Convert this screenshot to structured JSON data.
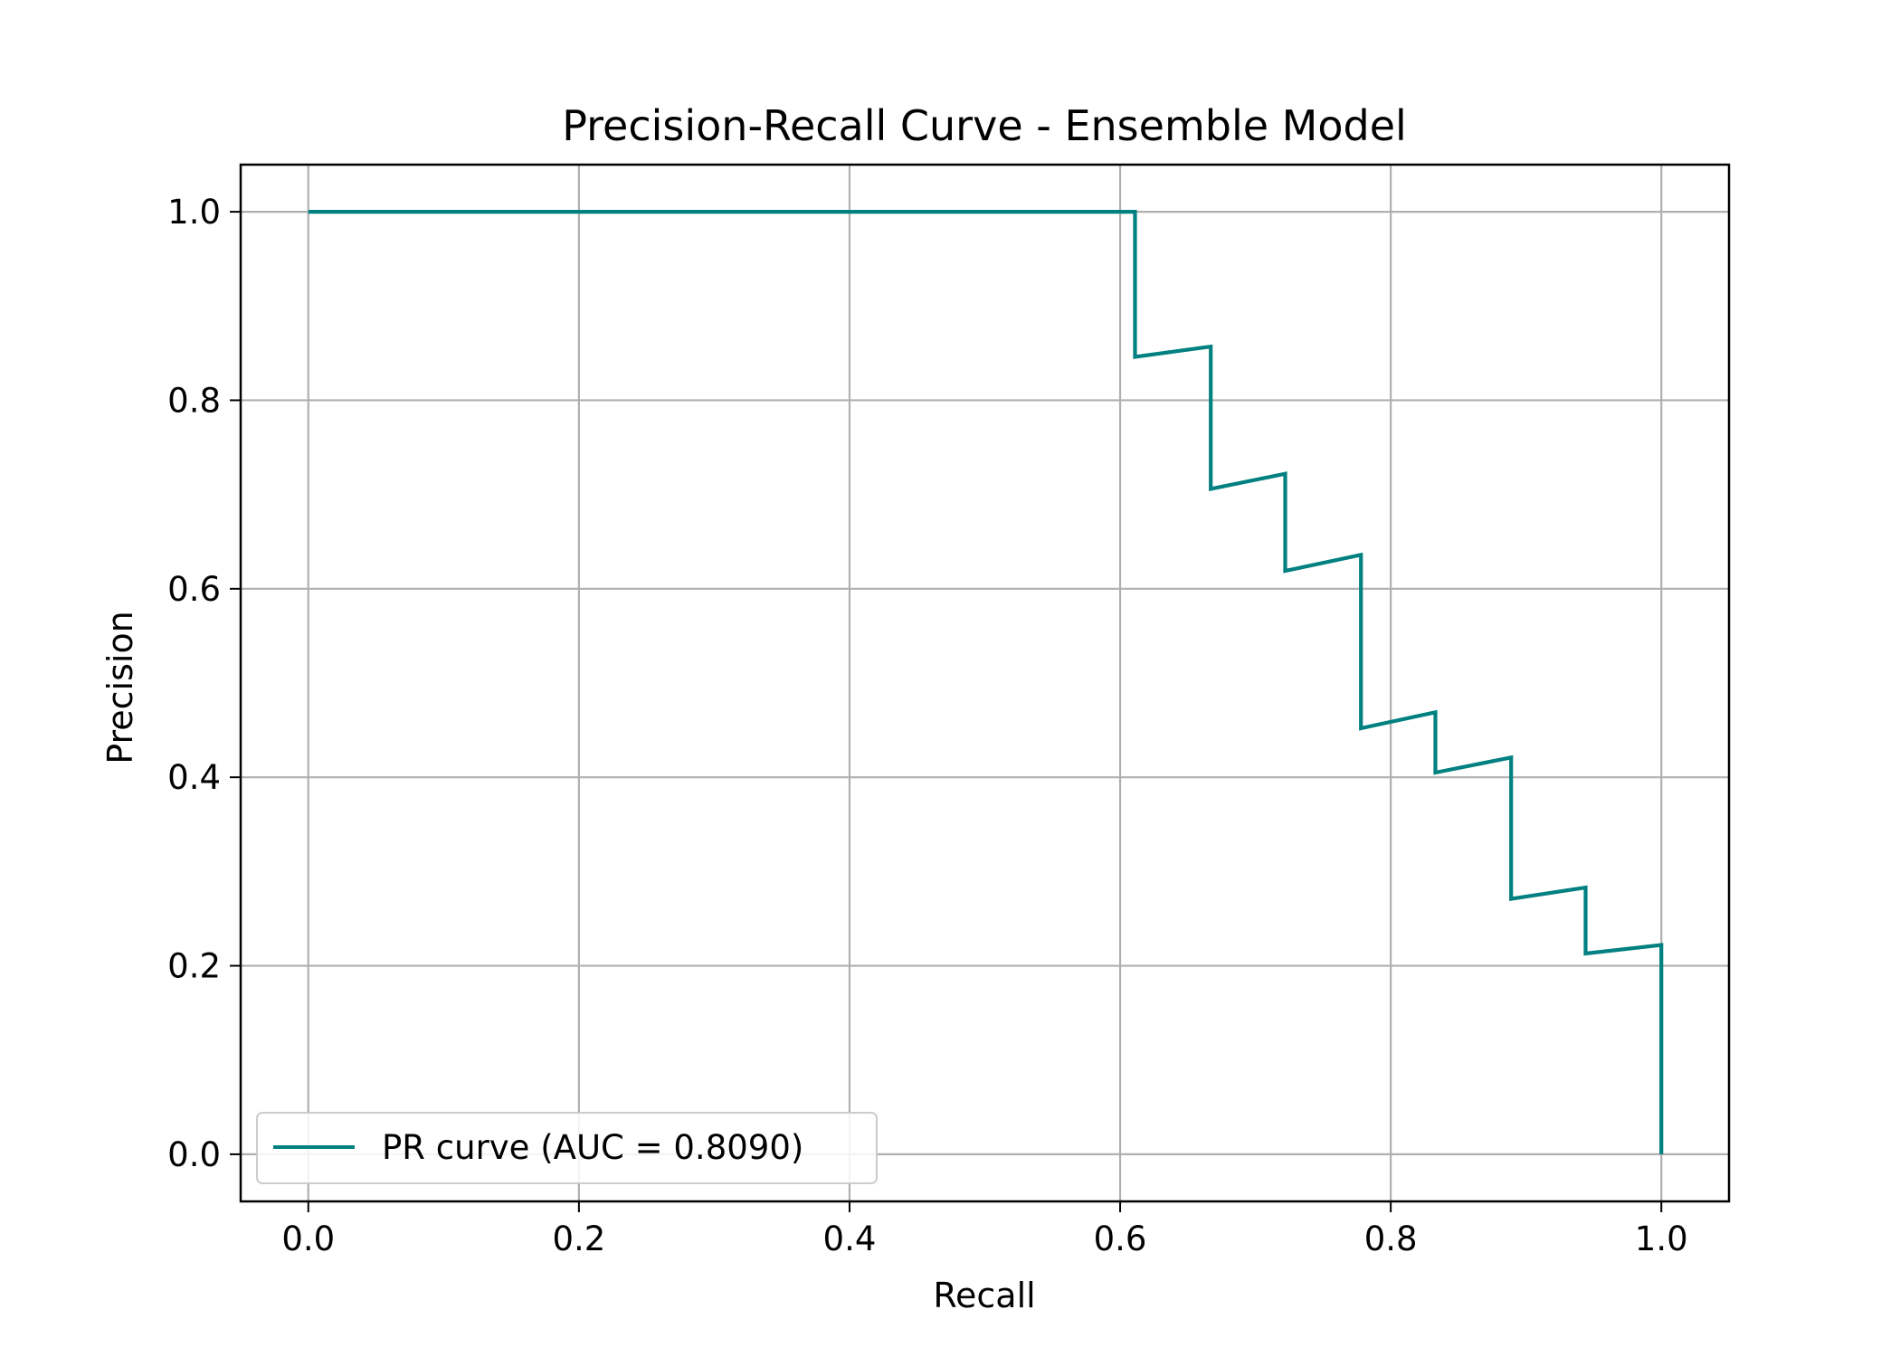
{
  "chart_data": {
    "type": "line",
    "title": "Precision-Recall Curve - Ensemble Model",
    "xlabel": "Recall",
    "ylabel": "Precision",
    "xlim": [
      -0.05,
      1.05
    ],
    "ylim": [
      -0.05,
      1.05
    ],
    "xticks": [
      "0.0",
      "0.2",
      "0.4",
      "0.6",
      "0.8",
      "1.0"
    ],
    "yticks": [
      "0.0",
      "0.2",
      "0.4",
      "0.6",
      "0.8",
      "1.0"
    ],
    "grid": true,
    "legend_position": "lower-left",
    "series": [
      {
        "name": "PR curve (AUC = 0.8090)",
        "color": "#008080",
        "points": [
          [
            0.0,
            1.0
          ],
          [
            0.611,
            1.0
          ],
          [
            0.611,
            0.846
          ],
          [
            0.667,
            0.857
          ],
          [
            0.667,
            0.706
          ],
          [
            0.722,
            0.722
          ],
          [
            0.722,
            0.619
          ],
          [
            0.778,
            0.636
          ],
          [
            0.778,
            0.452
          ],
          [
            0.833,
            0.469
          ],
          [
            0.833,
            0.405
          ],
          [
            0.889,
            0.421
          ],
          [
            0.889,
            0.271
          ],
          [
            0.944,
            0.283
          ],
          [
            0.944,
            0.213
          ],
          [
            1.0,
            0.222
          ],
          [
            1.0,
            0.0
          ]
        ]
      }
    ]
  }
}
